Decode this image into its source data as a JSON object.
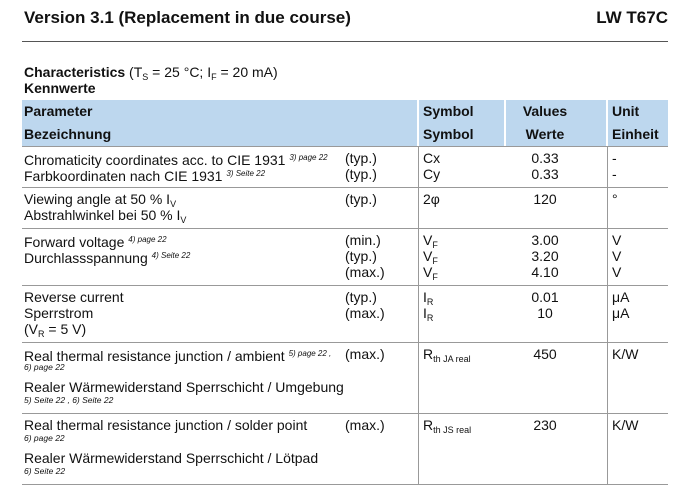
{
  "header": {
    "title": "Version 3.1 (Replacement in due course)",
    "part": "LW T67C"
  },
  "conditions": {
    "label": "Characteristics",
    "t_open": " (T",
    "t_sub": "S",
    "mid": " = 25 °C; I",
    "i_sub": "F",
    "close": " = 20 mA)"
  },
  "subtitle": "Kennwerte",
  "table": {
    "columns": [
      [
        "Parameter",
        "Bezeichnung"
      ],
      [
        "Symbol",
        "Symbol"
      ],
      [
        "Values",
        "Werte"
      ],
      [
        "Unit",
        "Einheit"
      ]
    ],
    "rows": [
      {
        "lines": [
          {
            "text": "Chromaticity coordinates acc. to CIE 1931",
            "sup": "3) page 22",
            "cond": "(typ.)",
            "sym": "Cx",
            "value": "0.33",
            "unit": "-"
          },
          {
            "text": "Farbkoordinaten nach CIE 1931",
            "sup": "3) Seite 22",
            "cond": "(typ.)",
            "sym": "Cy",
            "value": "0.33",
            "unit": "-"
          }
        ]
      },
      {
        "lines": [
          {
            "text": "Viewing angle at 50 % I",
            "sub": "V",
            "cond": "(typ.)",
            "sym": "2φ",
            "value": "120",
            "unit": "°"
          },
          {
            "text": "Abstrahlwinkel bei 50 % I",
            "sub": "V"
          }
        ]
      },
      {
        "lines": [
          {
            "text": "Forward voltage",
            "sup": "4) page 22",
            "cond": "(min.)",
            "sym": "V",
            "sym_sub": "F",
            "value": "3.00",
            "unit": "V"
          },
          {
            "text": "Durchlassspannung",
            "sup": "4) Seite 22",
            "cond": "(typ.)",
            "sym": "V",
            "sym_sub": "F",
            "value": "3.20",
            "unit": "V"
          },
          {
            "cond": "(max.)",
            "sym": "V",
            "sym_sub": "F",
            "value": "4.10",
            "unit": "V"
          }
        ]
      },
      {
        "lines": [
          {
            "text": "Reverse current",
            "cond": "(typ.)",
            "sym": "I",
            "sym_sub": "R",
            "value": "0.01",
            "unit": "μA"
          },
          {
            "text": "Sperrstrom",
            "cond": "(max.)",
            "sym": "I",
            "sym_sub": "R",
            "value": "10",
            "unit": "μA"
          },
          {
            "text": "(V",
            "sub": "R",
            "tail": " = 5 V)"
          }
        ]
      },
      {
        "lines": [
          {
            "text": "Real thermal resistance junction / ambient",
            "sup": "5) page 22 ,",
            "cond": "(max.)",
            "sym": "R",
            "sym_sub": "th JA real",
            "value": "450",
            "unit": "K/W"
          },
          {
            "note": "6) page 22"
          },
          {
            "text": "Realer Wärmewiderstand Sperrschicht / Umgebung"
          },
          {
            "note": "5) Seite 22 , 6) Seite 22"
          }
        ]
      },
      {
        "lines": [
          {
            "text": "Real thermal resistance junction / solder point",
            "cond": "(max.)",
            "sym": "R",
            "sym_sub": "th JS real",
            "value": "230",
            "unit": "K/W"
          },
          {
            "note": "6) page 22"
          },
          {
            "text": "Realer Wärmewiderstand Sperrschicht / Lötpad"
          },
          {
            "note": "6) Seite 22"
          }
        ]
      }
    ]
  }
}
